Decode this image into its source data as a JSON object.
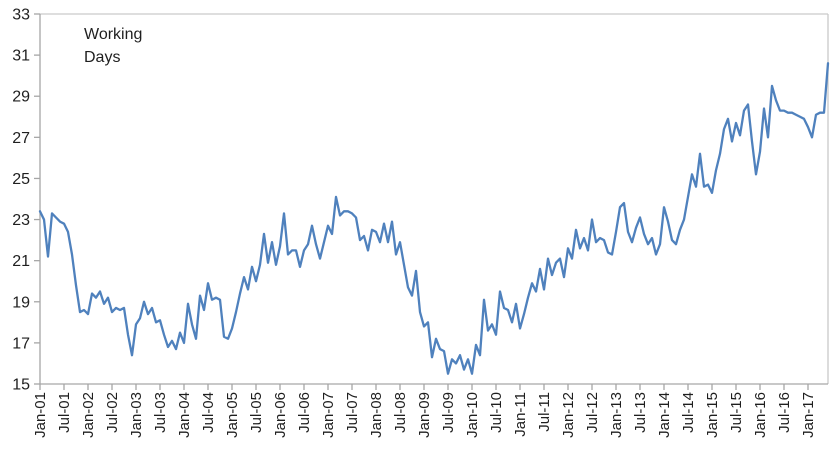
{
  "chart_data": {
    "type": "line",
    "title": "Working Days",
    "grid": false,
    "legend": "none",
    "line_color": "#4f81bd",
    "axis_color": "#a6a6a6",
    "border_color": "#c9c9c9",
    "label_color": "#1f1f1f",
    "ylim": [
      15,
      33
    ],
    "y_ticks": [
      15,
      17,
      19,
      21,
      23,
      25,
      27,
      29,
      31,
      33
    ],
    "x_tick_every_months": 6,
    "x_tick_labels": [
      "Jan-01",
      "Jul-01",
      "Jan-02",
      "Jul-02",
      "Jan-03",
      "Jul-03",
      "Jan-04",
      "Jul-04",
      "Jan-05",
      "Jul-05",
      "Jan-06",
      "Jul-06",
      "Jan-07",
      "Jul-07",
      "Jan-08",
      "Jul-08",
      "Jan-09",
      "Jul-09",
      "Jan-10",
      "Jul-10",
      "Jan-11",
      "Jul-11",
      "Jan-12",
      "Jul-12",
      "Jan-13",
      "Jul-13",
      "Jan-14",
      "Jul-14",
      "Jan-15",
      "Jul-15",
      "Jan-16",
      "Jul-16",
      "Jan-17"
    ],
    "series": [
      {
        "name": "Working Days",
        "start": "Jan-01",
        "interval": "month",
        "values": [
          23.4,
          23.0,
          21.2,
          23.3,
          23.1,
          22.9,
          22.8,
          22.4,
          21.3,
          19.8,
          18.5,
          18.6,
          18.4,
          19.4,
          19.2,
          19.5,
          18.9,
          19.2,
          18.5,
          18.7,
          18.6,
          18.7,
          17.4,
          16.4,
          17.9,
          18.2,
          19.0,
          18.4,
          18.7,
          18.0,
          18.1,
          17.4,
          16.8,
          17.1,
          16.7,
          17.5,
          17.0,
          18.9,
          17.9,
          17.2,
          19.3,
          18.6,
          19.9,
          19.1,
          19.2,
          19.1,
          17.3,
          17.2,
          17.7,
          18.5,
          19.4,
          20.2,
          19.6,
          20.7,
          20.0,
          20.8,
          22.3,
          20.9,
          21.9,
          20.8,
          21.7,
          23.3,
          21.3,
          21.5,
          21.5,
          20.7,
          21.5,
          21.8,
          22.7,
          21.8,
          21.1,
          21.9,
          22.7,
          22.3,
          24.1,
          23.2,
          23.4,
          23.4,
          23.3,
          23.1,
          22.0,
          22.2,
          21.5,
          22.5,
          22.4,
          21.9,
          22.8,
          21.9,
          22.9,
          21.3,
          21.9,
          20.8,
          19.7,
          19.3,
          20.5,
          18.5,
          17.8,
          18.0,
          16.3,
          17.2,
          16.7,
          16.6,
          15.5,
          16.2,
          16.0,
          16.4,
          15.7,
          16.2,
          15.5,
          16.9,
          16.4,
          19.1,
          17.6,
          17.9,
          17.4,
          19.5,
          18.7,
          18.6,
          18.0,
          18.9,
          17.7,
          18.4,
          19.2,
          19.9,
          19.5,
          20.6,
          19.6,
          21.1,
          20.3,
          20.9,
          21.1,
          20.2,
          21.6,
          21.1,
          22.5,
          21.6,
          22.1,
          21.5,
          23.0,
          21.9,
          22.1,
          22.0,
          21.4,
          21.3,
          22.4,
          23.6,
          23.8,
          22.4,
          21.9,
          22.6,
          23.1,
          22.3,
          21.8,
          22.1,
          21.3,
          21.8,
          23.6,
          22.9,
          22.0,
          21.8,
          22.5,
          23.0,
          24.1,
          25.2,
          24.6,
          26.2,
          24.6,
          24.7,
          24.3,
          25.4,
          26.2,
          27.4,
          27.9,
          26.8,
          27.7,
          27.1,
          28.3,
          28.6,
          26.8,
          25.2,
          26.3,
          28.4,
          27.0,
          29.5,
          28.8,
          28.3,
          28.3,
          28.2,
          28.2,
          28.1,
          28.0,
          27.9,
          27.5,
          27.0,
          28.1,
          28.2,
          28.2,
          30.6
        ]
      }
    ]
  }
}
